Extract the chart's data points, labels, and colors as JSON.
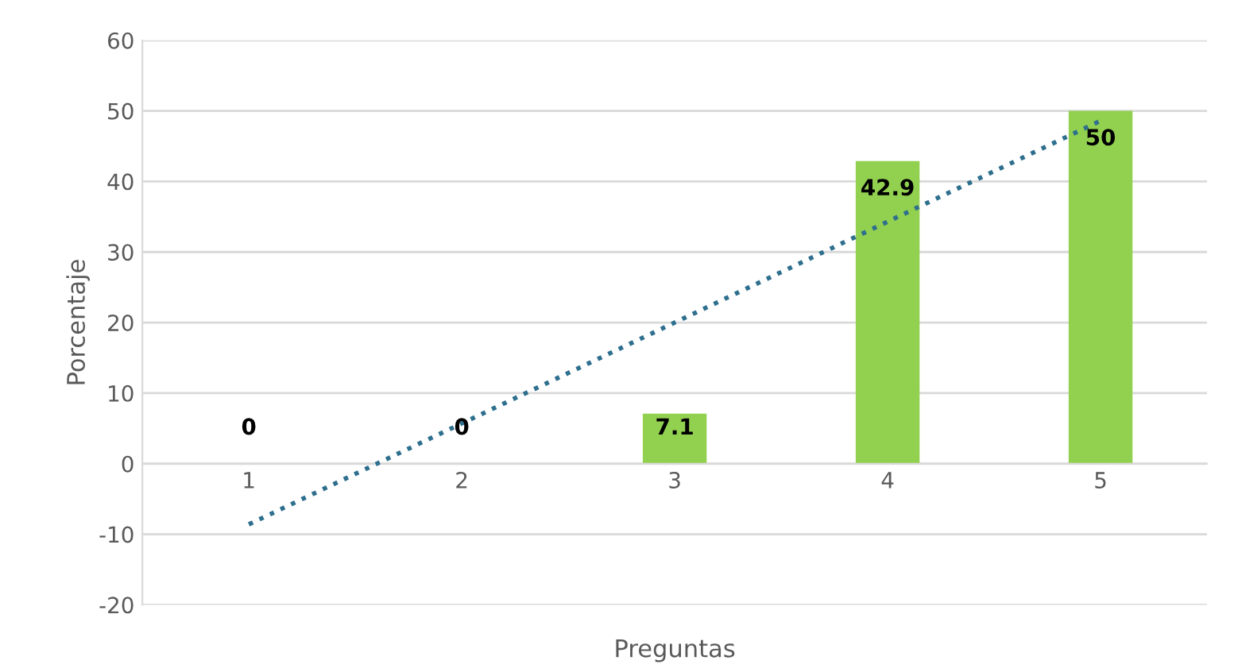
{
  "chart_data": {
    "type": "bar",
    "xlabel": "Preguntas",
    "ylabel": "Porcentaje",
    "categories": [
      "1",
      "2",
      "3",
      "4",
      "5"
    ],
    "series": [
      {
        "color": "#92d050",
        "values": [
          0,
          0,
          7.1,
          42.9,
          50
        ],
        "value_labels": [
          "0",
          "0",
          "7.1",
          "42.9",
          "50"
        ]
      },
      {
        "type": "line",
        "color": "#2e6f8e",
        "line_style": "dotted",
        "values": [
          -8.6,
          5.7,
          20,
          34.3,
          48.6
        ]
      }
    ],
    "ylim": [
      -20,
      60
    ],
    "yticks": [
      -20,
      -10,
      0,
      10,
      20,
      30,
      40,
      50,
      60
    ],
    "grid": "y"
  }
}
